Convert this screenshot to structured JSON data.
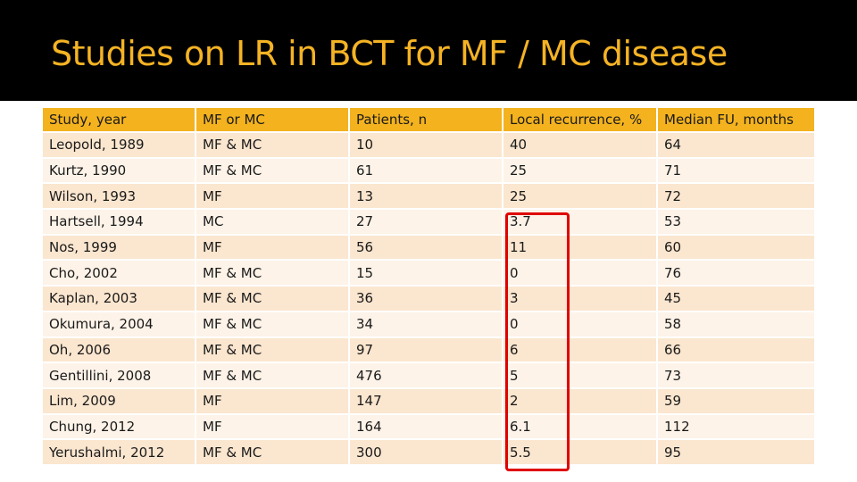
{
  "slide": {
    "title": "Studies on LR in BCT for MF / MC disease"
  },
  "table": {
    "headers": [
      "Study, year",
      "MF or MC",
      "Patients, n",
      "Local recurrence, %",
      "Median FU, months"
    ],
    "rows": [
      [
        "Leopold, 1989",
        "MF & MC",
        "10",
        "40",
        "64"
      ],
      [
        "Kurtz, 1990",
        "MF & MC",
        "61",
        "25",
        "71"
      ],
      [
        "Wilson, 1993",
        "MF",
        "13",
        "25",
        "72"
      ],
      [
        "Hartsell, 1994",
        "MC",
        "27",
        "3.7",
        "53"
      ],
      [
        "Nos, 1999",
        "MF",
        "56",
        "11",
        "60"
      ],
      [
        "Cho, 2002",
        "MF & MC",
        "15",
        "0",
        "76"
      ],
      [
        "Kaplan, 2003",
        "MF & MC",
        "36",
        "3",
        "45"
      ],
      [
        "Okumura, 2004",
        "MF & MC",
        "34",
        "0",
        "58"
      ],
      [
        "Oh, 2006",
        "MF & MC",
        "97",
        "6",
        "66"
      ],
      [
        "Gentillini, 2008",
        "MF & MC",
        "476",
        "5",
        "73"
      ],
      [
        "Lim, 2009",
        "MF",
        "147",
        "2",
        "59"
      ],
      [
        "Chung, 2012",
        "MF",
        "164",
        "6.1",
        "112"
      ],
      [
        "Yerushalmi, 2012",
        "MF & MC",
        "300",
        "5.5",
        "95"
      ]
    ]
  },
  "colors": {
    "title_bg": "#000000",
    "title_text": "#F5B324",
    "header_bg": "#F3B21E",
    "row_odd_bg": "#FBE6CF",
    "row_even_bg": "#FDF3E8",
    "highlight_border": "#E00000"
  }
}
